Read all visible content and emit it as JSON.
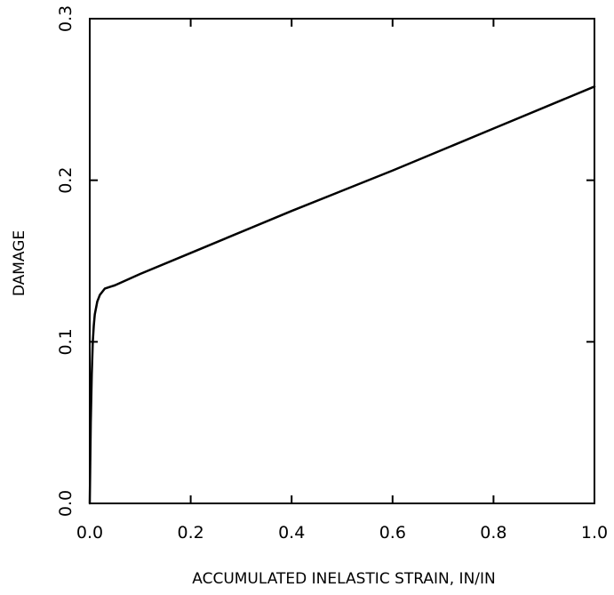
{
  "chart_data": {
    "type": "line",
    "title": "",
    "xlabel": "ACCUMULATED INELASTIC STRAIN, IN/IN",
    "ylabel": "DAMAGE",
    "xlim": [
      0.0,
      1.0
    ],
    "ylim": [
      0.0,
      0.3
    ],
    "x_ticks": [
      "0.0",
      "0.2",
      "0.4",
      "0.6",
      "0.8",
      "1.0"
    ],
    "y_ticks": [
      "0.0",
      "0.1",
      "0.2",
      "0.3"
    ],
    "grid": false,
    "legend": "none",
    "series": [
      {
        "x": [
          0.0,
          0.001,
          0.002,
          0.004,
          0.006,
          0.008,
          0.01,
          0.015,
          0.02,
          0.025,
          0.03,
          0.04,
          0.05,
          0.1,
          0.2,
          0.4,
          0.6,
          0.8,
          1.0
        ],
        "y": [
          0.0,
          0.025,
          0.05,
          0.08,
          0.1,
          0.11,
          0.117,
          0.125,
          0.129,
          0.131,
          0.133,
          0.134,
          0.135,
          0.142,
          0.155,
          0.181,
          0.206,
          0.232,
          0.258
        ]
      }
    ],
    "colors": {
      "line": "#000000",
      "axes": "#000000",
      "background": "#ffffff"
    }
  }
}
